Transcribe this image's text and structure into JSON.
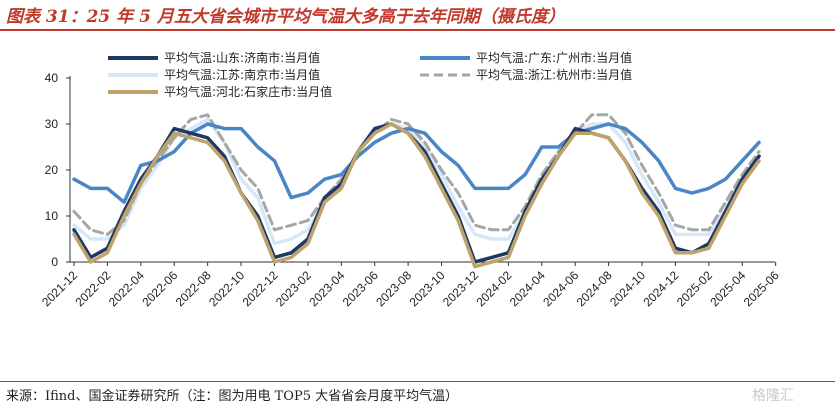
{
  "header": {
    "title": "图表 31：25 年 5 月五大省会城市平均气温大多高于去年同期（摄氏度）"
  },
  "footer": {
    "source": "来源：Ifind、国金证券研究所（注：图为用电 TOP5 大省省会月度平均气温）"
  },
  "watermark": {
    "text": "格隆汇"
  },
  "colors": {
    "accent": "#c0392b",
    "jinan": "#1f3864",
    "guangzhou": "#4a86c5",
    "nanjing": "#d6e8f8",
    "hangzhou": "#a6a6a6",
    "shijiazhuang": "#bfa36a"
  },
  "chart_data": {
    "type": "line",
    "title": "",
    "xlabel": "",
    "ylabel": "",
    "ylim": [
      0,
      40
    ],
    "yticks": [
      0,
      10,
      20,
      30,
      40
    ],
    "grid": false,
    "legend_position": "top",
    "x": [
      "2021-12",
      "2022-01",
      "2022-02",
      "2022-03",
      "2022-04",
      "2022-05",
      "2022-06",
      "2022-07",
      "2022-08",
      "2022-09",
      "2022-10",
      "2022-11",
      "2022-12",
      "2023-01",
      "2023-02",
      "2023-03",
      "2023-04",
      "2023-05",
      "2023-06",
      "2023-07",
      "2023-08",
      "2023-09",
      "2023-10",
      "2023-11",
      "2023-12",
      "2024-01",
      "2024-02",
      "2024-03",
      "2024-04",
      "2024-05",
      "2024-06",
      "2024-07",
      "2024-08",
      "2024-09",
      "2024-10",
      "2024-11",
      "2024-12",
      "2025-01",
      "2025-02",
      "2025-03",
      "2025-04",
      "2025-05"
    ],
    "xtick_labels": [
      "2021-12",
      "2022-02",
      "2022-04",
      "2022-06",
      "2022-08",
      "2022-10",
      "2022-12",
      "2023-02",
      "2023-04",
      "2023-06",
      "2023-08",
      "2023-10",
      "2023-12",
      "2024-02",
      "2024-04",
      "2024-06",
      "2024-08",
      "2024-10",
      "2024-12",
      "2025-02",
      "2025-04",
      "2025-06"
    ],
    "series": [
      {
        "name": "平均气温:山东:济南市:当月值",
        "color": "#1f3864",
        "values": [
          7,
          1,
          3,
          11,
          18,
          23,
          29,
          28,
          27,
          23,
          15,
          10,
          1,
          2,
          5,
          14,
          17,
          24,
          29,
          30,
          28,
          24,
          17,
          10,
          0,
          1,
          2,
          11,
          18,
          23,
          29,
          28,
          27,
          22,
          16,
          11,
          3,
          2,
          4,
          11,
          18,
          23
        ]
      },
      {
        "name": "平均气温:广东:广州市:当月值",
        "color": "#4a86c5",
        "values": [
          18,
          16,
          16,
          13,
          21,
          22,
          24,
          28,
          30,
          29,
          29,
          25,
          22,
          14,
          15,
          18,
          19,
          23,
          26,
          28,
          29,
          28,
          24,
          21,
          16,
          16,
          16,
          19,
          25,
          25,
          28,
          29,
          30,
          29,
          26,
          22,
          16,
          15,
          16,
          18,
          22,
          26
        ]
      },
      {
        "name": "平均气温:江苏:南京市:当月值",
        "color": "#d6e8f8",
        "values": [
          8,
          5,
          5,
          8,
          16,
          21,
          27,
          29,
          31,
          26,
          18,
          14,
          4,
          5,
          7,
          13,
          17,
          24,
          28,
          30,
          29,
          25,
          19,
          12,
          6,
          5,
          5,
          11,
          18,
          24,
          28,
          30,
          30,
          26,
          19,
          13,
          6,
          6,
          6,
          12,
          18,
          23
        ]
      },
      {
        "name": "平均气温:浙江:杭州市:当月值",
        "color": "#a6a6a6",
        "dashed": true,
        "values": [
          11,
          7,
          6,
          9,
          17,
          22,
          27,
          31,
          32,
          26,
          20,
          16,
          7,
          8,
          9,
          14,
          18,
          24,
          28,
          31,
          30,
          26,
          20,
          15,
          8,
          7,
          7,
          12,
          19,
          24,
          28,
          32,
          32,
          28,
          21,
          15,
          8,
          7,
          7,
          13,
          19,
          24
        ]
      },
      {
        "name": "平均气温:河北:石家庄市:当月值",
        "color": "#bfa36a",
        "values": [
          6,
          0,
          2,
          10,
          17,
          23,
          28,
          27,
          26,
          22,
          15,
          9,
          0,
          1,
          4,
          13,
          16,
          24,
          28,
          30,
          28,
          23,
          16,
          9,
          -1,
          0,
          1,
          10,
          17,
          23,
          28,
          28,
          27,
          22,
          15,
          10,
          2,
          2,
          3,
          10,
          17,
          22
        ]
      }
    ]
  }
}
